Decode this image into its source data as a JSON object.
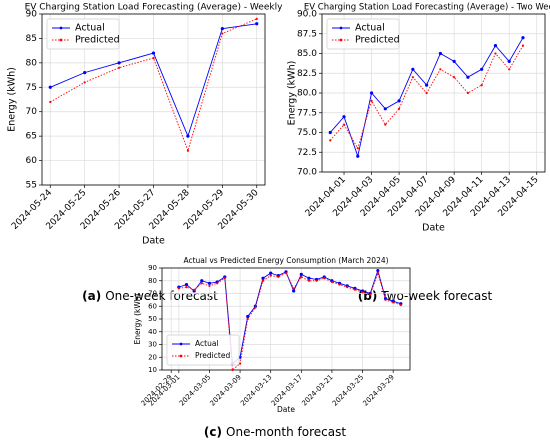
{
  "chart_data": [
    {
      "type": "line",
      "title": "EV Charging Station Load Forecasting (Average) - Weekly",
      "caption": {
        "label": "(a)",
        "text": "One-week forecast"
      },
      "xlabel": "Date",
      "ylabel": "Energy (kWh)",
      "x": [
        "2024-05-24",
        "2024-05-25",
        "2024-05-26",
        "2024-05-27",
        "2024-05-28",
        "2024-05-29",
        "2024-05-30"
      ],
      "xticks": [
        "2024-05-24",
        "2024-05-25",
        "2024-05-26",
        "2024-05-27",
        "2024-05-28",
        "2024-05-29",
        "2024-05-30"
      ],
      "series": [
        {
          "name": "Actual",
          "color": "#0000ff",
          "linestyle": "solid",
          "values": [
            75,
            78,
            80,
            82,
            65,
            87,
            88
          ]
        },
        {
          "name": "Predicted",
          "color": "#ff0000",
          "linestyle": "dotted",
          "values": [
            72,
            76,
            79,
            81,
            62,
            86,
            89
          ]
        }
      ],
      "ylim": [
        55,
        90
      ],
      "yticks": [
        55,
        60,
        65,
        70,
        75,
        80,
        85,
        90
      ],
      "grid": true,
      "legend": "upper left"
    },
    {
      "type": "line",
      "title": "EV Charging Station Load Forecasting (Average) - Two Weeks",
      "caption": {
        "label": "(b)",
        "text": "Two-week forecast"
      },
      "xlabel": "Date",
      "ylabel": "Energy (kWh)",
      "x": [
        "2024-03-31",
        "2024-04-01",
        "2024-04-02",
        "2024-04-03",
        "2024-04-04",
        "2024-04-05",
        "2024-04-06",
        "2024-04-07",
        "2024-04-08",
        "2024-04-09",
        "2024-04-10",
        "2024-04-11",
        "2024-04-12",
        "2024-04-13",
        "2024-04-14"
      ],
      "xticks": [
        "2024-04-01",
        "2024-04-03",
        "2024-04-05",
        "2024-04-07",
        "2024-04-09",
        "2024-04-11",
        "2024-04-13",
        "2024-04-15"
      ],
      "series": [
        {
          "name": "Actual",
          "color": "#0000ff",
          "linestyle": "solid",
          "values": [
            75,
            77,
            72,
            80,
            78,
            79,
            83,
            81,
            85,
            84,
            82,
            83,
            86,
            84,
            87
          ]
        },
        {
          "name": "Predicted",
          "color": "#ff0000",
          "linestyle": "dotted",
          "values": [
            74,
            76,
            73,
            79,
            76,
            78,
            82,
            80,
            83,
            82,
            80,
            81,
            85,
            83,
            86
          ]
        }
      ],
      "ylim": [
        70,
        90
      ],
      "yticks": [
        {
          "value": 70,
          "label": "70.0"
        },
        72.5,
        {
          "value": 75,
          "label": "75.0"
        },
        77.5,
        {
          "value": 80,
          "label": "80.0"
        },
        82.5,
        {
          "value": 85,
          "label": "85.0"
        },
        87.5,
        {
          "value": 90,
          "label": "90.0"
        }
      ],
      "grid": true,
      "legend": "upper left"
    },
    {
      "type": "line",
      "title": "Actual vs Predicted Energy Consumption (March 2024)",
      "caption": {
        "label": "(c)",
        "text": "One-month forecast"
      },
      "xlabel": "Date",
      "ylabel": "Energy (kWh)",
      "x": [
        "2024-03-01",
        "2024-03-02",
        "2024-03-03",
        "2024-03-04",
        "2024-03-05",
        "2024-03-06",
        "2024-03-07",
        "2024-03-08",
        "2024-03-09",
        "2024-03-10",
        "2024-03-11",
        "2024-03-12",
        "2024-03-13",
        "2024-03-14",
        "2024-03-15",
        "2024-03-16",
        "2024-03-17",
        "2024-03-18",
        "2024-03-19",
        "2024-03-20",
        "2024-03-21",
        "2024-03-22",
        "2024-03-23",
        "2024-03-24",
        "2024-03-25",
        "2024-03-26",
        "2024-03-27",
        "2024-03-28",
        "2024-03-29",
        "2024-03-30"
      ],
      "xticks": [
        "2024-02-29",
        "2024-03-01",
        "2024-03-05",
        "2024-03-09",
        "2024-03-13",
        "2024-03-17",
        "2024-03-21",
        "2024-03-25",
        "2024-03-29"
      ],
      "series": [
        {
          "name": "Actual",
          "color": "#0000ff",
          "linestyle": "solid",
          "values": [
            75,
            77,
            72,
            80,
            78,
            79,
            83,
            15,
            20,
            52,
            60,
            82,
            86,
            84,
            87,
            72,
            85,
            82,
            81,
            83,
            80,
            78,
            76,
            74,
            72,
            70,
            88,
            66,
            64,
            62
          ]
        },
        {
          "name": "Predicted",
          "color": "#ff0000",
          "linestyle": "dotted",
          "values": [
            74,
            75,
            73,
            78,
            76,
            78,
            82,
            10,
            15,
            50,
            59,
            80,
            84,
            83,
            86,
            74,
            83,
            80,
            80,
            82,
            79,
            77,
            75,
            73,
            71,
            69,
            86,
            65,
            63,
            61
          ]
        }
      ],
      "ylim": [
        10,
        90
      ],
      "yticks": [
        10,
        20,
        30,
        40,
        50,
        60,
        70,
        80,
        90
      ],
      "grid": true,
      "legend": "lower left"
    }
  ]
}
